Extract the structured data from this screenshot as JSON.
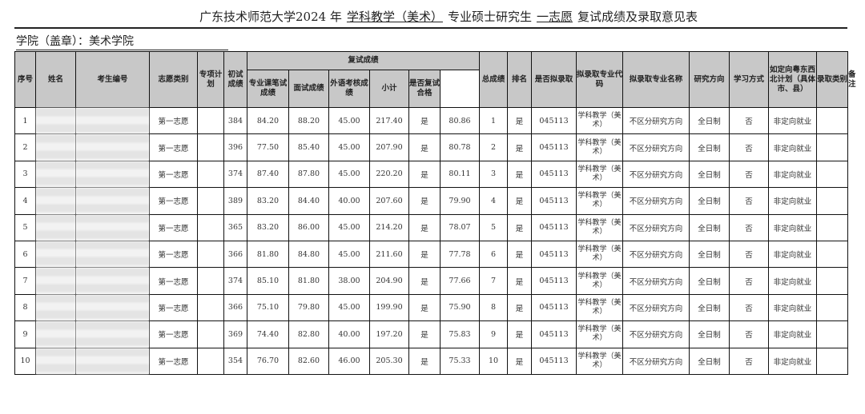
{
  "title": {
    "prefix": "广东技术师范大学2024 年",
    "major": "学科教学（美术）",
    "middle": "专业硕士研究生",
    "choice": "一志愿",
    "suffix": "复试成绩及录取意见表"
  },
  "college": "学院（盖章）：美术学院",
  "headers": {
    "seq": "序号",
    "name": "姓名",
    "id": "考生编号",
    "choice_type": "志愿类别",
    "special": "专项计划",
    "prelim": "初试成绩",
    "retest": "复试成绩",
    "written": "专业课笔试成绩",
    "interview": "面试成绩",
    "foreign": "外语考核成绩",
    "subtotal": "小计",
    "pass": "是否复试合格",
    "total": "总成绩",
    "rank": "排名",
    "admit": "是否拟录取",
    "code": "拟录取专业代码",
    "major_name": "拟录取专业名称",
    "direction": "研究方向",
    "mode": "学习方式",
    "targeted": "如定向粤东西北计划（具体市、县）",
    "category": "录取类别",
    "remark": "备注"
  },
  "rows": [
    {
      "seq": "1",
      "choice": "第一志愿",
      "prelim": "384",
      "written": "84.20",
      "interview": "88.20",
      "foreign": "45.00",
      "subtotal": "217.40",
      "pass": "是",
      "total": "80.86",
      "rank": "1",
      "admit": "是",
      "code": "045113",
      "major": "学科教学（美术）",
      "direction": "不区分研究方向",
      "mode": "全日制",
      "targeted": "否",
      "category": "非定向就业"
    },
    {
      "seq": "2",
      "choice": "第一志愿",
      "prelim": "396",
      "written": "77.50",
      "interview": "85.40",
      "foreign": "45.00",
      "subtotal": "207.90",
      "pass": "是",
      "total": "80.78",
      "rank": "2",
      "admit": "是",
      "code": "045113",
      "major": "学科教学（美术）",
      "direction": "不区分研究方向",
      "mode": "全日制",
      "targeted": "否",
      "category": "非定向就业"
    },
    {
      "seq": "3",
      "choice": "第一志愿",
      "prelim": "374",
      "written": "87.40",
      "interview": "87.80",
      "foreign": "45.00",
      "subtotal": "220.20",
      "pass": "是",
      "total": "80.11",
      "rank": "3",
      "admit": "是",
      "code": "045113",
      "major": "学科教学（美术）",
      "direction": "不区分研究方向",
      "mode": "全日制",
      "targeted": "否",
      "category": "非定向就业"
    },
    {
      "seq": "4",
      "choice": "第一志愿",
      "prelim": "389",
      "written": "83.20",
      "interview": "84.40",
      "foreign": "40.00",
      "subtotal": "207.60",
      "pass": "是",
      "total": "79.90",
      "rank": "4",
      "admit": "是",
      "code": "045113",
      "major": "学科教学（美术）",
      "direction": "不区分研究方向",
      "mode": "全日制",
      "targeted": "否",
      "category": "非定向就业"
    },
    {
      "seq": "5",
      "choice": "第一志愿",
      "prelim": "365",
      "written": "83.20",
      "interview": "86.00",
      "foreign": "45.00",
      "subtotal": "214.20",
      "pass": "是",
      "total": "78.07",
      "rank": "5",
      "admit": "是",
      "code": "045113",
      "major": "学科教学（美术）",
      "direction": "不区分研究方向",
      "mode": "全日制",
      "targeted": "否",
      "category": "非定向就业"
    },
    {
      "seq": "6",
      "choice": "第一志愿",
      "prelim": "366",
      "written": "81.80",
      "interview": "84.80",
      "foreign": "45.00",
      "subtotal": "211.60",
      "pass": "是",
      "total": "77.78",
      "rank": "6",
      "admit": "是",
      "code": "045113",
      "major": "学科教学（美术）",
      "direction": "不区分研究方向",
      "mode": "全日制",
      "targeted": "否",
      "category": "非定向就业"
    },
    {
      "seq": "7",
      "choice": "第一志愿",
      "prelim": "374",
      "written": "85.10",
      "interview": "81.80",
      "foreign": "38.00",
      "subtotal": "204.90",
      "pass": "是",
      "total": "77.66",
      "rank": "7",
      "admit": "是",
      "code": "045113",
      "major": "学科教学（美术）",
      "direction": "不区分研究方向",
      "mode": "全日制",
      "targeted": "否",
      "category": "非定向就业"
    },
    {
      "seq": "8",
      "choice": "第一志愿",
      "prelim": "366",
      "written": "75.10",
      "interview": "79.80",
      "foreign": "45.00",
      "subtotal": "199.90",
      "pass": "是",
      "total": "75.90",
      "rank": "8",
      "admit": "是",
      "code": "045113",
      "major": "学科教学（美术）",
      "direction": "不区分研究方向",
      "mode": "全日制",
      "targeted": "否",
      "category": "非定向就业"
    },
    {
      "seq": "9",
      "choice": "第一志愿",
      "prelim": "369",
      "written": "74.40",
      "interview": "82.80",
      "foreign": "40.00",
      "subtotal": "197.20",
      "pass": "是",
      "total": "75.83",
      "rank": "9",
      "admit": "是",
      "code": "045113",
      "major": "学科教学（美术）",
      "direction": "不区分研究方向",
      "mode": "全日制",
      "targeted": "否",
      "category": "非定向就业"
    },
    {
      "seq": "10",
      "choice": "第一志愿",
      "prelim": "354",
      "written": "76.70",
      "interview": "82.60",
      "foreign": "46.00",
      "subtotal": "205.30",
      "pass": "是",
      "total": "75.33",
      "rank": "10",
      "admit": "是",
      "code": "045113",
      "major": "学科教学（美术）",
      "direction": "不区分研究方向",
      "mode": "全日制",
      "targeted": "否",
      "category": "非定向就业"
    }
  ]
}
